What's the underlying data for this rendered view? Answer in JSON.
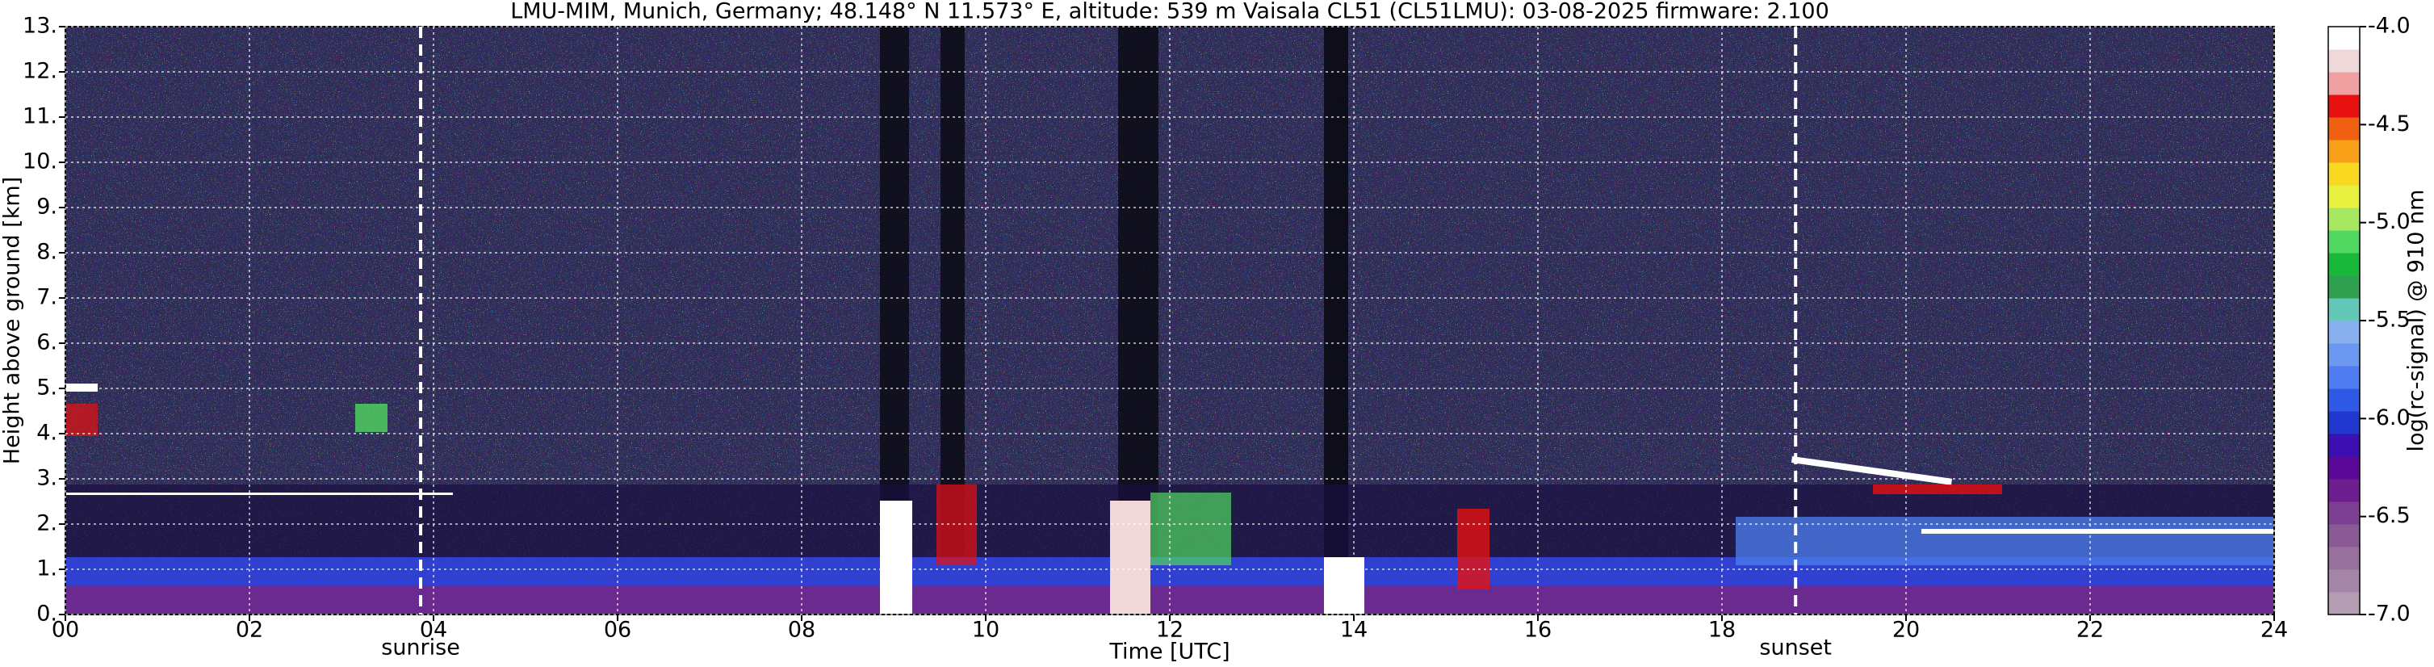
{
  "chart_data": {
    "type": "heatmap",
    "title": "LMU-MIM, Munich, Germany; 48.148° N 11.573° E, altitude: 539 m    Vaisala CL51 (CL51LMU): 03-08-2025    firmware: 2.100",
    "x_label": "Time [UTC]",
    "y_label": "Height above ground [km]",
    "xlim": [
      0,
      24
    ],
    "xticks": [
      {
        "value": 0,
        "label": "00"
      },
      {
        "value": 2,
        "label": "02"
      },
      {
        "value": 4,
        "label": "04"
      },
      {
        "value": 6,
        "label": "06"
      },
      {
        "value": 8,
        "label": "08"
      },
      10,
      12,
      14,
      16,
      18,
      20,
      22,
      24
    ],
    "ylim": [
      0,
      13
    ],
    "yticks": [
      {
        "value": 0,
        "label": "0."
      },
      {
        "value": 1,
        "label": "1."
      },
      {
        "value": 2,
        "label": "2."
      },
      {
        "value": 3,
        "label": "3."
      },
      {
        "value": 4,
        "label": "4."
      },
      {
        "value": 5,
        "label": "5."
      },
      {
        "value": 6,
        "label": "6."
      },
      {
        "value": 7,
        "label": "7."
      },
      {
        "value": 8,
        "label": "8."
      },
      {
        "value": 9,
        "label": "9."
      },
      {
        "value": 10,
        "label": "10."
      },
      {
        "value": 11,
        "label": "11."
      },
      {
        "value": 12,
        "label": "12."
      },
      {
        "value": 13,
        "label": "13."
      }
    ],
    "grid": true,
    "annotations": [
      {
        "text": "sunrise",
        "x": 3.86
      },
      {
        "text": "sunset",
        "x": 18.8
      }
    ],
    "colorbar": {
      "label": "log(rc-signal) @ 910 nm",
      "lim": [
        -7,
        -4
      ],
      "ticks": [
        {
          "value": -7,
          "label": "-7.0"
        },
        {
          "value": -6.5,
          "label": "-6.5"
        },
        {
          "value": -6,
          "label": "-6.0"
        },
        {
          "value": -5.5,
          "label": "-5.5"
        },
        {
          "value": -5,
          "label": "-5.0"
        },
        {
          "value": -4.5,
          "label": "-4.5"
        },
        {
          "value": -4,
          "label": "-4.0"
        }
      ],
      "colors": [
        "#b39eb3",
        "#a586a8",
        "#97709e",
        "#8a5a96",
        "#7d3f92",
        "#6d1f8f",
        "#5a0a96",
        "#3c10b0",
        "#2236d0",
        "#2f5ae8",
        "#4f7cf0",
        "#6c98f2",
        "#88b0ee",
        "#62c8b8",
        "#2ea050",
        "#19b83a",
        "#50d860",
        "#a8e860",
        "#e8f040",
        "#f8d820",
        "#f8a018",
        "#f06010",
        "#e81010",
        "#f0a0a0",
        "#f0d8d8",
        "#ffffff"
      ]
    }
  }
}
